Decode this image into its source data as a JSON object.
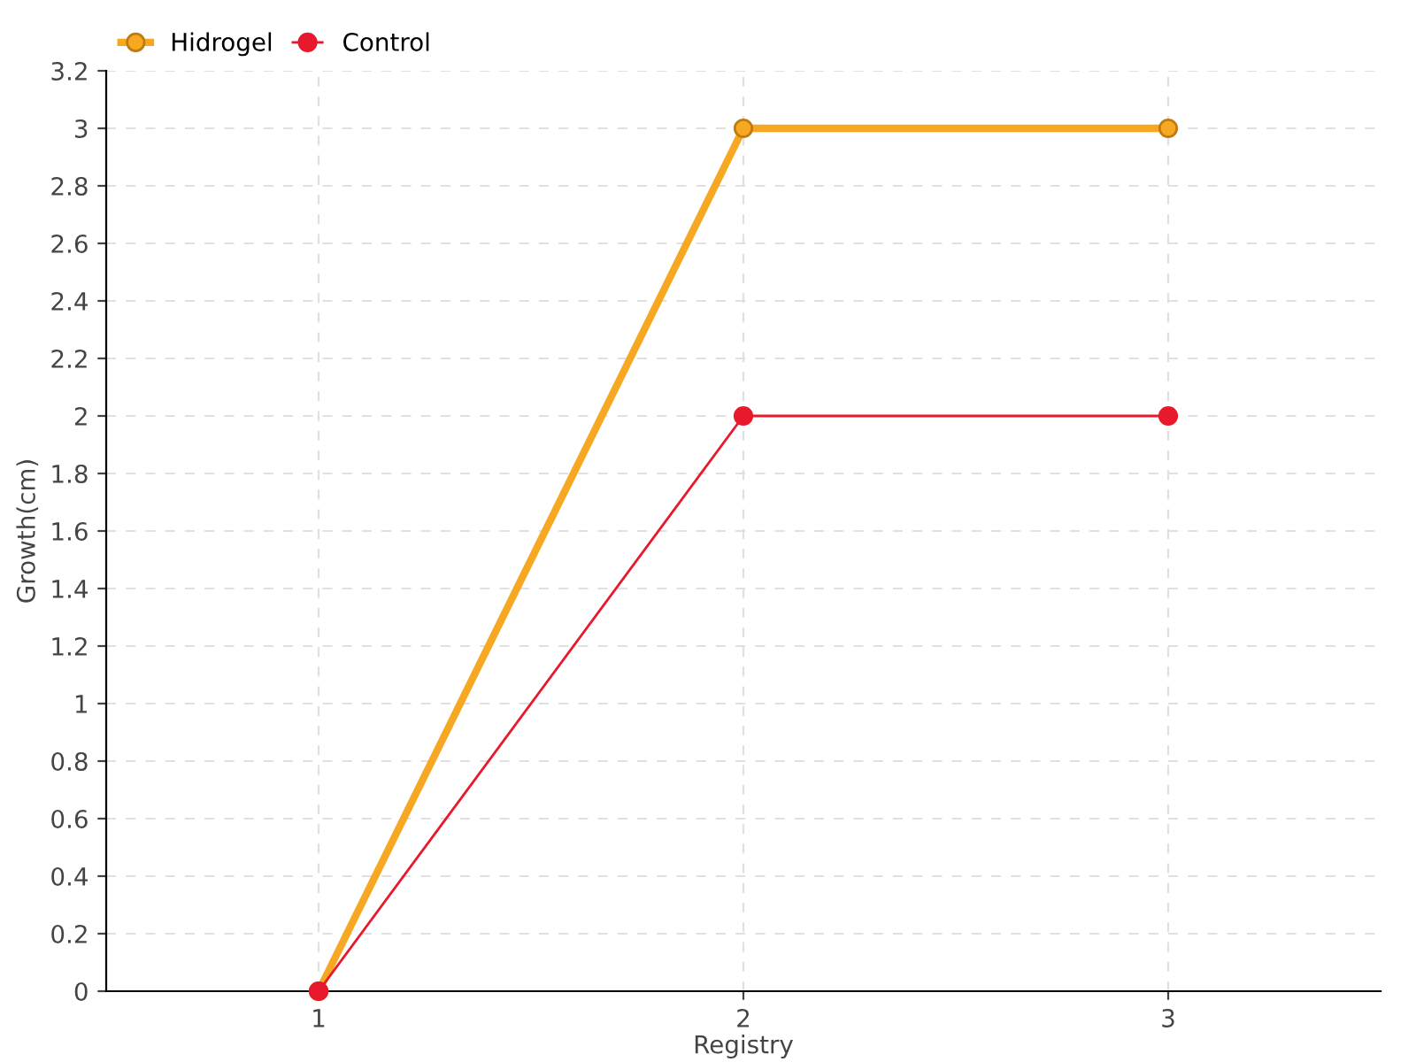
{
  "chart_data": {
    "type": "line",
    "xlabel": "Registry",
    "ylabel": "Growth(cm)",
    "x": [
      1,
      2,
      3
    ],
    "xlim": [
      0.5,
      3.5
    ],
    "xticks": [
      1,
      2,
      3
    ],
    "ylim": [
      0,
      3.2
    ],
    "yticks": [
      0,
      0.2,
      0.4,
      0.6,
      0.8,
      1,
      1.2,
      1.4,
      1.6,
      1.8,
      2,
      2.2,
      2.4,
      2.6,
      2.8,
      3,
      3.2
    ],
    "series": [
      {
        "name": "Hidrogel",
        "color": "#f7a823",
        "values": [
          0,
          3,
          3
        ]
      },
      {
        "name": "Control",
        "color": "#e8192c",
        "values": [
          0,
          2,
          2
        ]
      }
    ],
    "grid": true,
    "legend": "top left",
    "marker": "circle",
    "line_style": "solid"
  }
}
